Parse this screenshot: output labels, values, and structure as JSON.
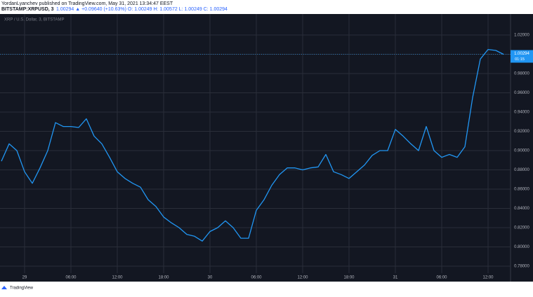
{
  "header": {
    "author_line": "YordanLyanchev published on TradingView.com, May 31, 2021 13:34:47 EEST",
    "symbol": "BITSTAMP:XRPUSD, 3",
    "quote": "1.00294 ▲ +0.09640 (+10.63%) O: 1.00249 H: 1.00572 L: 1.00249 C: 1.00294"
  },
  "footer": {
    "brand": "TradingView"
  },
  "chart_data": {
    "type": "line",
    "title": "XRP / U.S. Dollar, 3, BITSTAMP",
    "categories": [
      null,
      null,
      null,
      "29",
      null,
      null,
      null,
      null,
      null,
      "06:00",
      null,
      null,
      null,
      null,
      null,
      "12:00",
      null,
      null,
      null,
      null,
      null,
      "18:00",
      null,
      null,
      null,
      null,
      null,
      "30",
      null,
      null,
      null,
      null,
      null,
      "06:00",
      null,
      null,
      null,
      null,
      null,
      "12:00",
      null,
      null,
      null,
      null,
      null,
      "18:00",
      null,
      null,
      null,
      null,
      null,
      "31",
      null,
      null,
      null,
      null,
      null,
      "06:00",
      null,
      null,
      null,
      null,
      null,
      "12:00",
      null,
      null
    ],
    "values": [
      0.889,
      0.907,
      0.9,
      0.878,
      0.866,
      0.882,
      0.9,
      0.929,
      0.925,
      0.925,
      0.924,
      0.933,
      0.915,
      0.907,
      0.893,
      0.878,
      0.871,
      0.866,
      0.862,
      0.849,
      0.842,
      0.831,
      0.825,
      0.82,
      0.813,
      0.811,
      0.806,
      0.816,
      0.82,
      0.827,
      0.82,
      0.809,
      0.809,
      0.838,
      0.849,
      0.864,
      0.875,
      0.882,
      0.882,
      0.88,
      0.882,
      0.883,
      0.896,
      0.878,
      0.875,
      0.871,
      0.878,
      0.885,
      0.895,
      0.9,
      0.9,
      0.922,
      0.915,
      0.907,
      0.9,
      0.925,
      0.9,
      0.893,
      0.896,
      0.893,
      0.904,
      0.955,
      0.995,
      1.005,
      1.004,
      1.0
    ],
    "color": "#2196f3",
    "ylim": [
      0.7727,
      1.0418
    ],
    "yticks": [
      {
        "value": 0.78,
        "label": "0.78000"
      },
      {
        "value": 0.8,
        "label": "0.80000"
      },
      {
        "value": 0.82,
        "label": "0.82000"
      },
      {
        "value": 0.84,
        "label": "0.84000"
      },
      {
        "value": 0.86,
        "label": "0.86000"
      },
      {
        "value": 0.88,
        "label": "0.88000"
      },
      {
        "value": 0.9,
        "label": "0.90000"
      },
      {
        "value": 0.92,
        "label": "0.92000"
      },
      {
        "value": 0.94,
        "label": "0.94000"
      },
      {
        "value": 0.96,
        "label": "0.96000"
      },
      {
        "value": 0.98,
        "label": "0.98000"
      },
      {
        "value": 1.0,
        "label": "1.00000"
      },
      {
        "value": 1.02,
        "label": "1.02000"
      }
    ],
    "last_price": "1.00294",
    "countdown": "01:15",
    "grid": true
  }
}
